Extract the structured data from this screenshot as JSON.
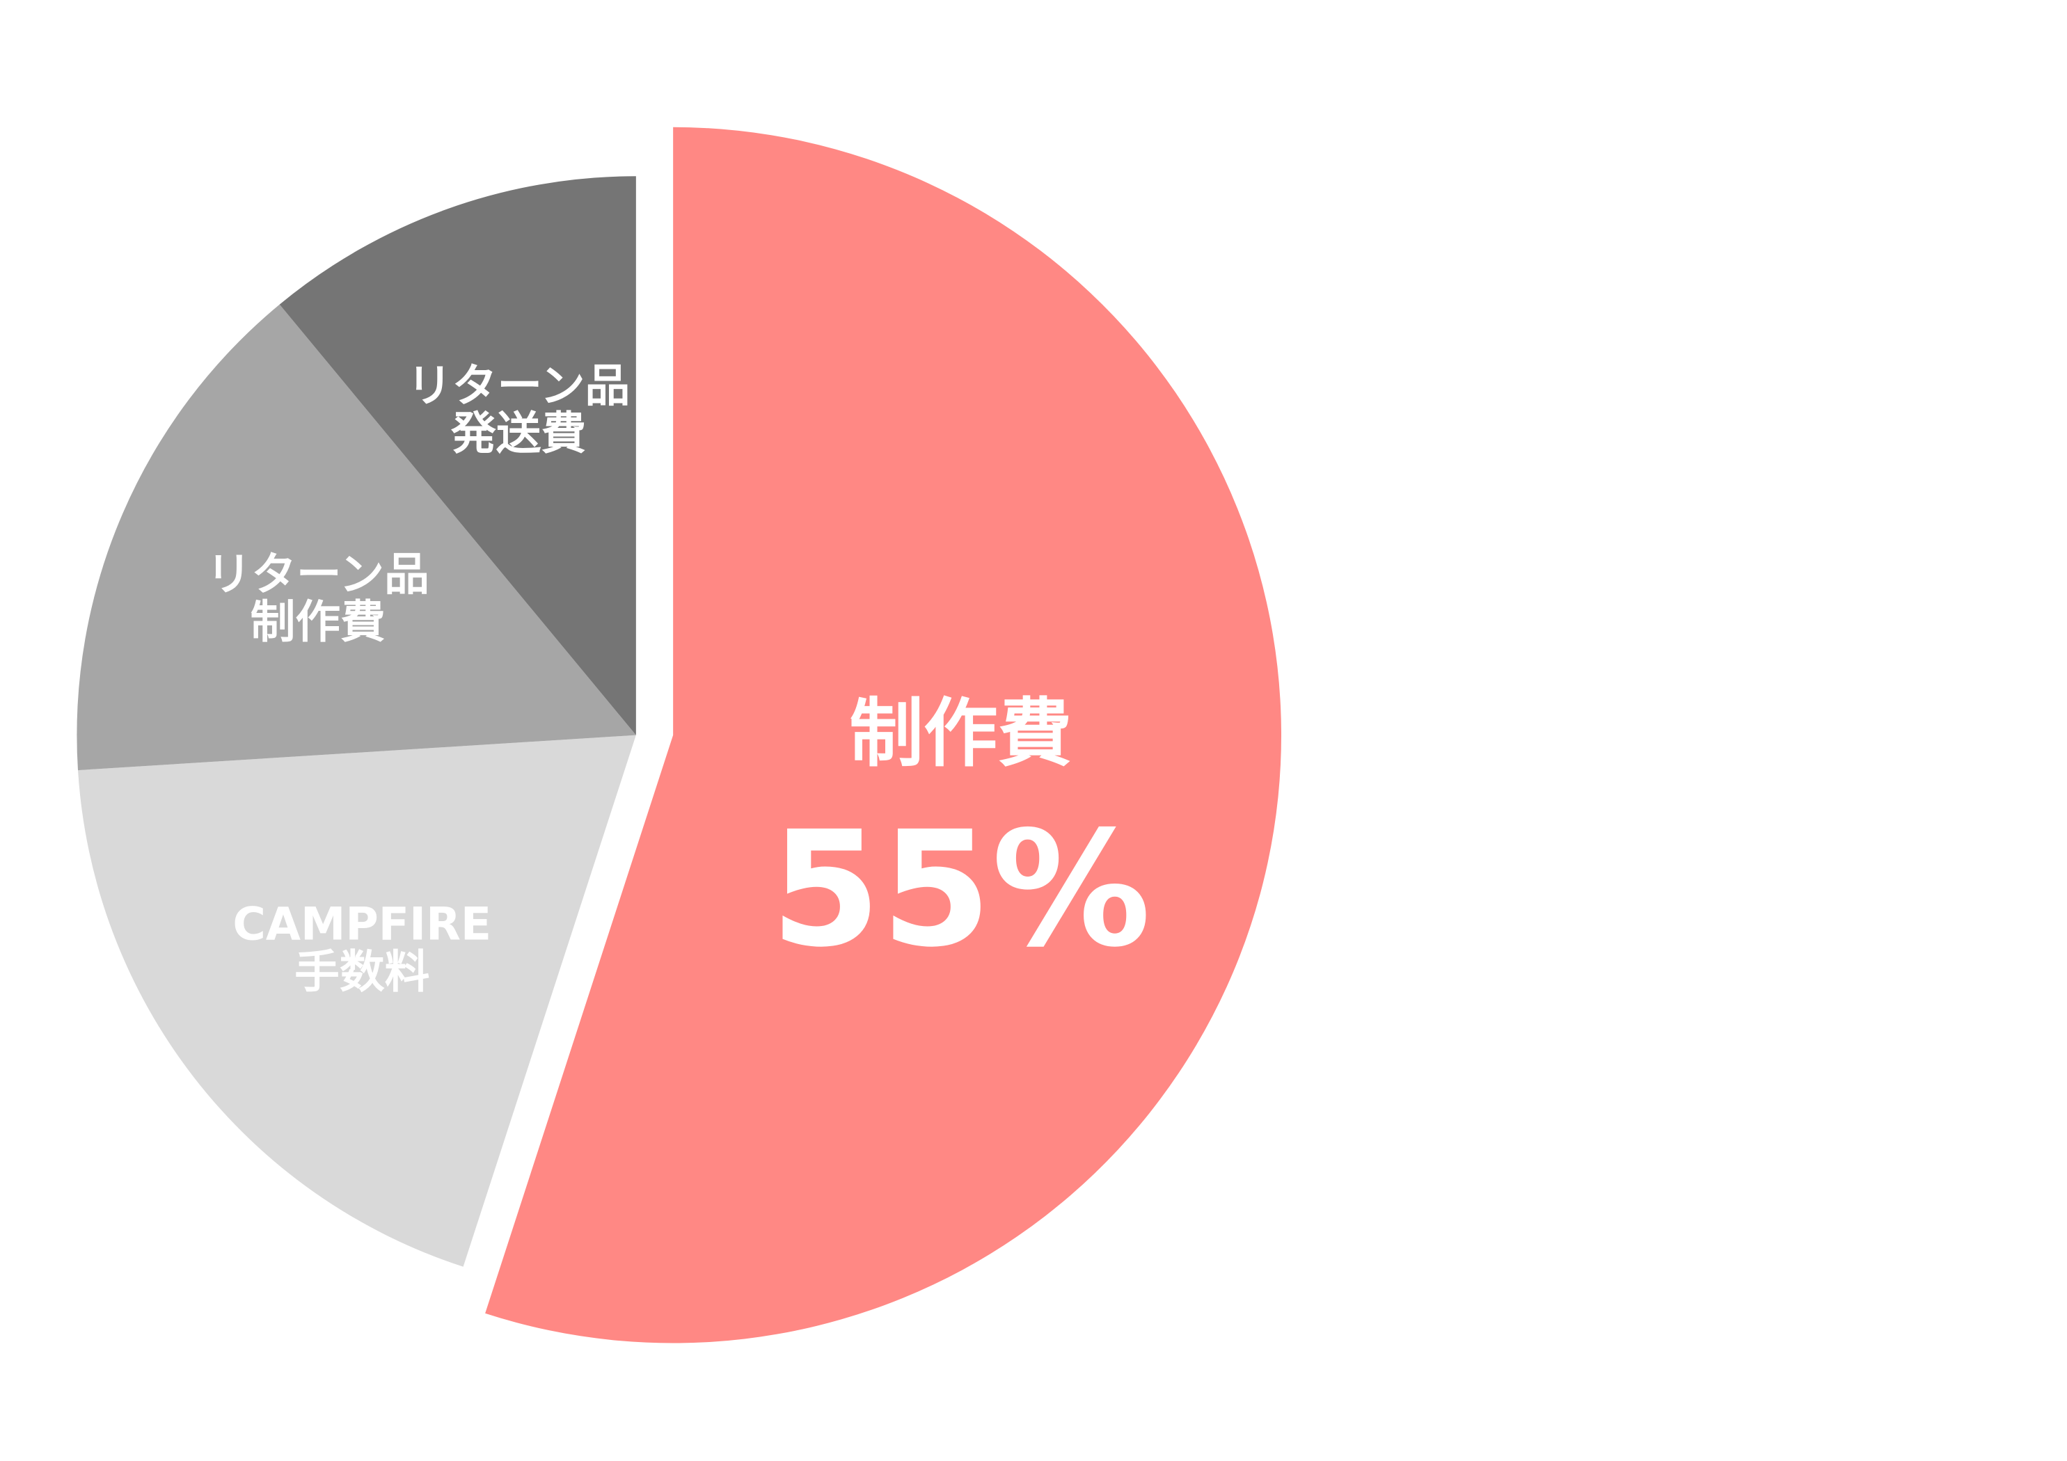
{
  "chart_data": {
    "type": "pie",
    "start": "12 o'clock",
    "direction": "clockwise",
    "slices": [
      {
        "label_lines": [
          "制作費"
        ],
        "value": 55,
        "value_label": "55%",
        "color": "#FF8884",
        "exploded": true
      },
      {
        "label_lines": [
          "CAMPFIRE",
          "手数料"
        ],
        "value": 19,
        "color": "#D9D9D9"
      },
      {
        "label_lines": [
          "リターン品",
          "制作費"
        ],
        "value": 15,
        "color": "#A6A6A6"
      },
      {
        "label_lines": [
          "リターン品",
          "発送費"
        ],
        "value": 11,
        "color": "#757575"
      }
    ]
  }
}
